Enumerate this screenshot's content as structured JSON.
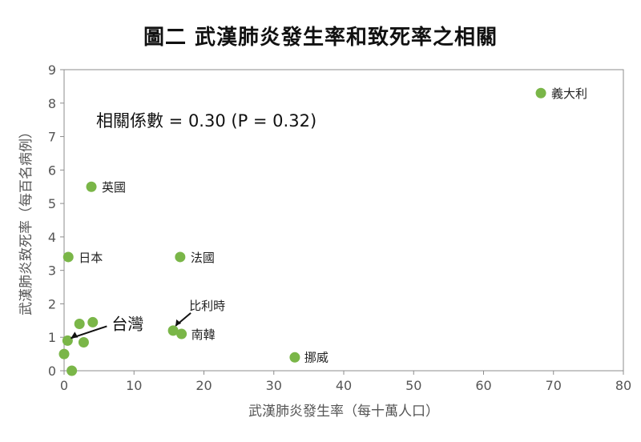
{
  "chart_data": {
    "type": "scatter",
    "title": "圖二 武漢肺炎發生率和致死率之相關",
    "xlabel": "武漢肺炎發生率（每十萬人口）",
    "ylabel": "武漢肺炎致死率（每百名病例）",
    "xlim": [
      0,
      80
    ],
    "ylim": [
      0,
      9
    ],
    "xticks": [
      0,
      10,
      20,
      30,
      40,
      50,
      60,
      70,
      80
    ],
    "yticks": [
      0,
      1,
      2,
      3,
      4,
      5,
      6,
      7,
      8,
      9
    ],
    "point_color": "#7ab648",
    "annotation": "相關係數 = 0.30 (P = 0.32)",
    "points": [
      {
        "x": 68.2,
        "y": 8.3,
        "label": "義大利"
      },
      {
        "x": 3.9,
        "y": 5.5,
        "label": "英國"
      },
      {
        "x": 0.6,
        "y": 3.4,
        "label": "日本"
      },
      {
        "x": 16.6,
        "y": 3.4,
        "label": "法國"
      },
      {
        "x": 15.6,
        "y": 1.2,
        "label": "比利時"
      },
      {
        "x": 16.8,
        "y": 1.1,
        "label": "南韓"
      },
      {
        "x": 33.0,
        "y": 0.4,
        "label": "挪威"
      },
      {
        "x": 0.5,
        "y": 0.9,
        "label": "台灣"
      },
      {
        "x": 2.2,
        "y": 1.4,
        "label": ""
      },
      {
        "x": 4.1,
        "y": 1.45,
        "label": ""
      },
      {
        "x": 2.8,
        "y": 0.85,
        "label": ""
      },
      {
        "x": 0.0,
        "y": 0.5,
        "label": ""
      },
      {
        "x": 1.1,
        "y": 0.0,
        "label": ""
      }
    ]
  }
}
